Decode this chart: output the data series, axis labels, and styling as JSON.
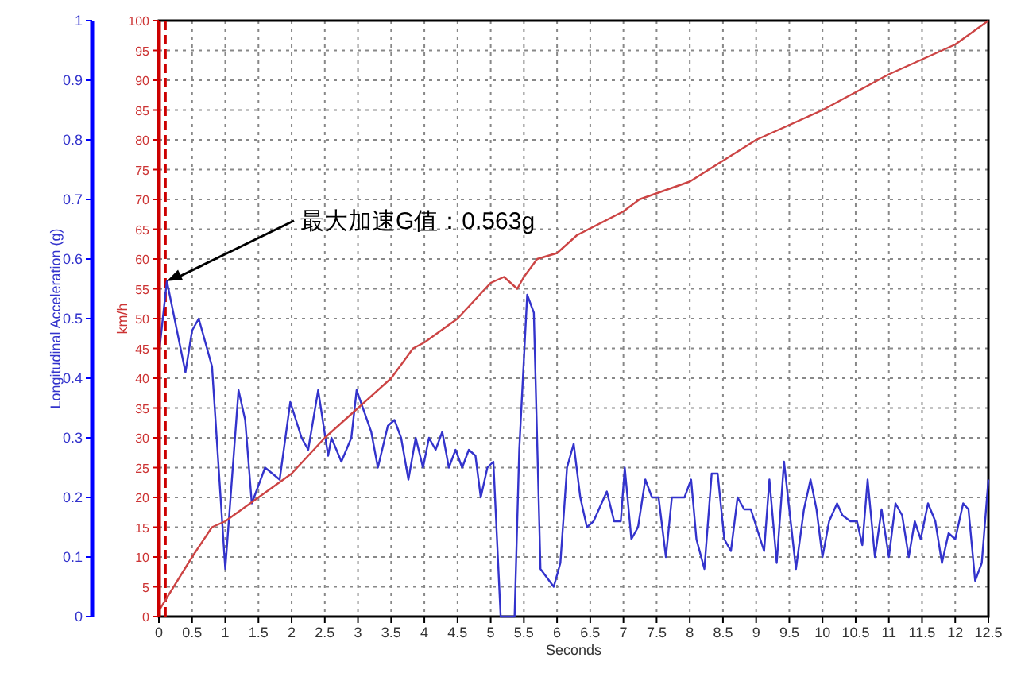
{
  "chart_data": {
    "type": "line",
    "xlabel": "Seconds",
    "ylabel": "Longitudinal Acceleration (g)",
    "y2label": "km/h",
    "xlim": [
      0,
      12.5
    ],
    "xticks": [
      0,
      0.5,
      1,
      1.5,
      2,
      2.5,
      3,
      3.5,
      4,
      4.5,
      5,
      5.5,
      6,
      6.5,
      7,
      7.5,
      8,
      8.5,
      9,
      9.5,
      10,
      10.5,
      11,
      11.5,
      12,
      12.5
    ],
    "ylim": [
      0,
      1
    ],
    "yticks": [
      0,
      0.1,
      0.2,
      0.3,
      0.4,
      0.5,
      0.6,
      0.7,
      0.8,
      0.9,
      1
    ],
    "y2lim": [
      0,
      100
    ],
    "y2ticks": [
      0,
      5,
      10,
      15,
      20,
      25,
      30,
      35,
      40,
      45,
      50,
      55,
      60,
      65,
      70,
      75,
      80,
      85,
      90,
      95,
      100
    ],
    "grid": true,
    "ref_lines": [
      {
        "axis": "x",
        "value": 0.1,
        "color": "#cc0000",
        "line_style": "dashed"
      }
    ],
    "annotations": [
      {
        "text": "最大加速G值：0.563g",
        "x": 0.12,
        "y": 0.563
      }
    ],
    "series": [
      {
        "color": "#3333cc",
        "axis": "y",
        "x": [
          0,
          0.12,
          0.4,
          0.5,
          0.6,
          0.8,
          1.0,
          1.2,
          1.3,
          1.4,
          1.6,
          1.82,
          1.98,
          2.15,
          2.25,
          2.4,
          2.55,
          2.6,
          2.75,
          2.9,
          2.98,
          3.2,
          3.3,
          3.45,
          3.55,
          3.65,
          3.76,
          3.87,
          3.98,
          4.07,
          4.17,
          4.27,
          4.37,
          4.47,
          4.57,
          4.67,
          4.77,
          4.85,
          4.95,
          5.04,
          5.15,
          5.36,
          5.43,
          5.55,
          5.65,
          5.75,
          5.95,
          6.05,
          6.15,
          6.25,
          6.35,
          6.45,
          6.55,
          6.75,
          6.86,
          6.96,
          7.02,
          7.12,
          7.22,
          7.33,
          7.43,
          7.53,
          7.64,
          7.73,
          7.92,
          8.02,
          8.1,
          8.22,
          8.33,
          8.42,
          8.52,
          8.62,
          8.72,
          8.82,
          8.92,
          9.12,
          9.2,
          9.31,
          9.42,
          9.5,
          9.6,
          9.72,
          9.82,
          9.91,
          10.0,
          10.1,
          10.22,
          10.3,
          10.42,
          10.52,
          10.6,
          10.68,
          10.79,
          10.89,
          11.0,
          11.1,
          11.2,
          11.3,
          11.39,
          11.48,
          11.59,
          11.7,
          11.8,
          11.9,
          12.0,
          12.12,
          12.2,
          12.3,
          12.4,
          12.5
        ],
        "values": [
          0.44,
          0.563,
          0.41,
          0.48,
          0.5,
          0.42,
          0.08,
          0.38,
          0.33,
          0.19,
          0.25,
          0.23,
          0.36,
          0.3,
          0.28,
          0.38,
          0.27,
          0.3,
          0.26,
          0.3,
          0.38,
          0.31,
          0.25,
          0.32,
          0.33,
          0.3,
          0.23,
          0.3,
          0.25,
          0.3,
          0.28,
          0.31,
          0.25,
          0.28,
          0.25,
          0.28,
          0.27,
          0.2,
          0.25,
          0.26,
          0,
          0,
          0.28,
          0.54,
          0.51,
          0.08,
          0.05,
          0.09,
          0.25,
          0.29,
          0.2,
          0.15,
          0.16,
          0.21,
          0.16,
          0.16,
          0.25,
          0.13,
          0.15,
          0.23,
          0.2,
          0.2,
          0.1,
          0.2,
          0.2,
          0.23,
          0.13,
          0.08,
          0.24,
          0.24,
          0.13,
          0.11,
          0.2,
          0.18,
          0.18,
          0.11,
          0.23,
          0.09,
          0.26,
          0.18,
          0.08,
          0.18,
          0.23,
          0.18,
          0.1,
          0.16,
          0.19,
          0.17,
          0.16,
          0.16,
          0.12,
          0.23,
          0.1,
          0.18,
          0.1,
          0.19,
          0.17,
          0.1,
          0.16,
          0.13,
          0.19,
          0.16,
          0.09,
          0.14,
          0.13,
          0.19,
          0.18,
          0.06,
          0.09,
          0.23
        ]
      },
      {
        "color": "#cc4444",
        "axis": "y2",
        "x": [
          0,
          0.5,
          0.8,
          1.0,
          1.25,
          1.5,
          2,
          2.5,
          3,
          3.5,
          3.83,
          4,
          4.5,
          5,
          5.2,
          5.4,
          5.5,
          5.7,
          6,
          6.3,
          7,
          7.24,
          8,
          9,
          10,
          11,
          12,
          12.5
        ],
        "values": [
          1,
          10,
          15,
          16,
          18,
          20,
          24,
          30,
          35,
          40,
          45,
          46,
          50,
          56,
          57,
          55,
          57,
          60,
          61,
          64,
          68,
          70,
          73,
          80,
          85,
          91,
          96,
          100
        ]
      }
    ]
  }
}
